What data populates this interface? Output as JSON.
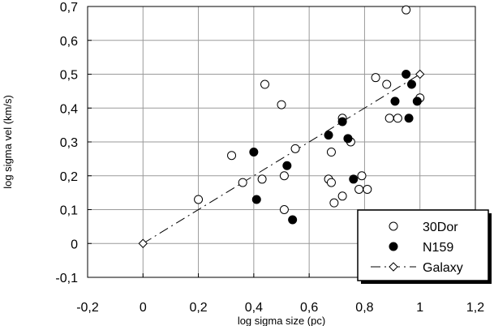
{
  "chart_data": {
    "type": "scatter",
    "xlabel": "log sigma size (pc)",
    "ylabel": "log sigma vel (km/s)",
    "xlim": [
      -0.2,
      1.2
    ],
    "ylim": [
      -0.1,
      0.7
    ],
    "x_ticks": [
      "-0,2",
      "0",
      "0,2",
      "0,4",
      "0,6",
      "0,8",
      "1",
      "1,2"
    ],
    "y_ticks": [
      "-0,1",
      "0",
      "0,1",
      "0,2",
      "0,3",
      "0,4",
      "0,5",
      "0,6",
      "0,7"
    ],
    "grid": true,
    "legend_position": "bottom-right",
    "series": [
      {
        "name": "30Dor",
        "marker": "open-circle",
        "color": "#000000",
        "points": [
          [
            0.2,
            0.13
          ],
          [
            0.32,
            0.26
          ],
          [
            0.36,
            0.18
          ],
          [
            0.43,
            0.19
          ],
          [
            0.44,
            0.47
          ],
          [
            0.5,
            0.41
          ],
          [
            0.51,
            0.2
          ],
          [
            0.51,
            0.1
          ],
          [
            0.55,
            0.28
          ],
          [
            0.67,
            0.19
          ],
          [
            0.68,
            0.18
          ],
          [
            0.68,
            0.27
          ],
          [
            0.69,
            0.12
          ],
          [
            0.72,
            0.14
          ],
          [
            0.72,
            0.37
          ],
          [
            0.75,
            0.3
          ],
          [
            0.78,
            0.16
          ],
          [
            0.79,
            0.2
          ],
          [
            0.81,
            0.16
          ],
          [
            0.84,
            0.49
          ],
          [
            0.88,
            0.47
          ],
          [
            0.89,
            0.37
          ],
          [
            0.92,
            0.37
          ],
          [
            0.95,
            0.69
          ],
          [
            1.0,
            0.43
          ]
        ]
      },
      {
        "name": "N159",
        "marker": "filled-circle",
        "color": "#000000",
        "points": [
          [
            0.4,
            0.27
          ],
          [
            0.41,
            0.13
          ],
          [
            0.52,
            0.23
          ],
          [
            0.54,
            0.07
          ],
          [
            0.67,
            0.32
          ],
          [
            0.72,
            0.36
          ],
          [
            0.74,
            0.31
          ],
          [
            0.76,
            0.19
          ],
          [
            0.91,
            0.42
          ],
          [
            0.95,
            0.5
          ],
          [
            0.96,
            0.37
          ],
          [
            0.97,
            0.47
          ],
          [
            0.99,
            0.42
          ]
        ]
      },
      {
        "name": "Galaxy",
        "marker": "open-diamond",
        "line": "dashed",
        "color": "#000000",
        "points": [
          [
            0.0,
            0.0
          ],
          [
            1.0,
            0.5
          ]
        ]
      }
    ]
  }
}
